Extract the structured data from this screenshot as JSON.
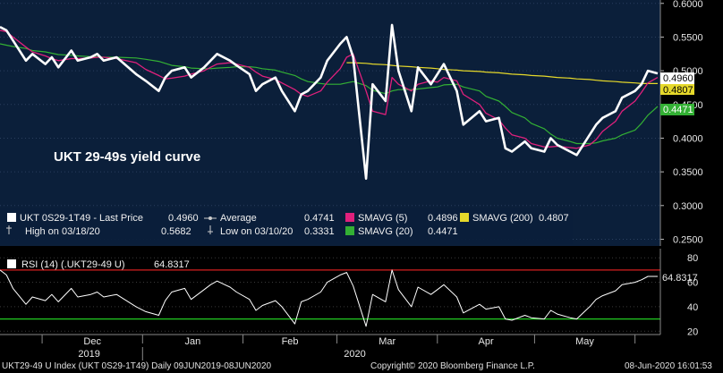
{
  "colors": {
    "background": "#000000",
    "panel": "#0b1f3a",
    "price": "#ffffff",
    "sma5": "#e0207c",
    "sma20": "#33b034",
    "sma200": "#e6d92a",
    "rsi_line": "#ffffff",
    "rsi_over": "#d62020",
    "rsi_under": "#22cc22"
  },
  "main": {
    "title": "UKT 29-49s yield curve",
    "y_ticks": [
      "0.6000",
      "0.5500",
      "0.5000",
      "0.4500",
      "0.4000",
      "0.3500",
      "0.3000",
      "0.2500"
    ],
    "last_labels": {
      "price": "0.4960",
      "sma200": "0.4807",
      "sma20": "0.4471"
    },
    "legend": {
      "price_label": "UKT 0S29-1T49 - Last Price",
      "price_value": "0.4960",
      "high_label": "High on 03/18/20",
      "high_value": "0.5682",
      "average_label": "Average",
      "average_value": "0.4741",
      "low_label": "Low on 03/10/20",
      "low_value": "0.3331",
      "sma5_label": "SMAVG (5)",
      "sma5_value": "0.4896",
      "sma20_label": "SMAVG (20)",
      "sma20_value": "0.4471",
      "sma200_label": "SMAVG (200)",
      "sma200_value": "0.4807"
    }
  },
  "rsi": {
    "legend_label": "RSI (14) (.UKT29-49 U)",
    "legend_value": "64.8317",
    "last_label": "64.8317",
    "y_ticks": [
      "80",
      "60",
      "40",
      "20"
    ],
    "overbought": 70,
    "oversold": 30
  },
  "x_axis": {
    "months": [
      "Dec",
      "Jan",
      "Feb",
      "Mar",
      "Apr",
      "May"
    ],
    "years": [
      "2019",
      "2020"
    ]
  },
  "footer": {
    "left": "UKT29-49 U Index (UKT 0S29-1T49)  Daily 09JUN2019-08JUN2020",
    "center": "Copyright© 2020 Bloomberg Finance L.P.",
    "right": "08-Jun-2020 16:01:53"
  },
  "chart_data": [
    {
      "type": "line",
      "title": "UKT 29-49s yield curve",
      "ylim": [
        0.24,
        0.605
      ],
      "x_dates": [
        "2019-11-18",
        "2019-11-20",
        "2019-11-22",
        "2019-11-26",
        "2019-11-28",
        "2019-12-02",
        "2019-12-04",
        "2019-12-06",
        "2019-12-10",
        "2019-12-12",
        "2019-12-16",
        "2019-12-18",
        "2019-12-20",
        "2019-12-24",
        "2019-12-30",
        "2020-01-02",
        "2020-01-06",
        "2020-01-08",
        "2020-01-10",
        "2020-01-14",
        "2020-01-16",
        "2020-01-20",
        "2020-01-22",
        "2020-01-24",
        "2020-01-28",
        "2020-01-30",
        "2020-02-03",
        "2020-02-05",
        "2020-02-07",
        "2020-02-11",
        "2020-02-13",
        "2020-02-17",
        "2020-02-19",
        "2020-02-21",
        "2020-02-25",
        "2020-02-27",
        "2020-03-02",
        "2020-03-04",
        "2020-03-06",
        "2020-03-10",
        "2020-03-12",
        "2020-03-16",
        "2020-03-18",
        "2020-03-20",
        "2020-03-24",
        "2020-03-26",
        "2020-03-30",
        "2020-04-01",
        "2020-04-03",
        "2020-04-07",
        "2020-04-09",
        "2020-04-14",
        "2020-04-16",
        "2020-04-20",
        "2020-04-22",
        "2020-04-24",
        "2020-04-28",
        "2020-04-30",
        "2020-05-04",
        "2020-05-06",
        "2020-05-08",
        "2020-05-12",
        "2020-05-14",
        "2020-05-18",
        "2020-05-20",
        "2020-05-22",
        "2020-05-26",
        "2020-05-28",
        "2020-06-01",
        "2020-06-03",
        "2020-06-05",
        "2020-06-08"
      ],
      "series": [
        {
          "name": "UKT 0S29-1T49 - Last Price",
          "values": [
            0.565,
            0.56,
            0.545,
            0.515,
            0.525,
            0.51,
            0.52,
            0.505,
            0.53,
            0.515,
            0.52,
            0.525,
            0.515,
            0.52,
            0.495,
            0.485,
            0.47,
            0.49,
            0.5,
            0.505,
            0.49,
            0.505,
            0.515,
            0.525,
            0.515,
            0.508,
            0.495,
            0.47,
            0.48,
            0.49,
            0.47,
            0.44,
            0.465,
            0.47,
            0.49,
            0.515,
            0.54,
            0.55,
            0.52,
            0.34,
            0.48,
            0.455,
            0.568,
            0.5,
            0.44,
            0.505,
            0.48,
            0.495,
            0.51,
            0.47,
            0.42,
            0.44,
            0.425,
            0.43,
            0.385,
            0.38,
            0.395,
            0.385,
            0.38,
            0.4,
            0.39,
            0.38,
            0.375,
            0.405,
            0.42,
            0.43,
            0.44,
            0.46,
            0.47,
            0.48,
            0.5,
            0.496
          ]
        },
        {
          "name": "SMAVG (5)",
          "values": [
            0.56,
            0.558,
            0.55,
            0.535,
            0.528,
            0.522,
            0.518,
            0.515,
            0.518,
            0.518,
            0.519,
            0.52,
            0.52,
            0.518,
            0.512,
            0.502,
            0.493,
            0.488,
            0.489,
            0.492,
            0.495,
            0.5,
            0.505,
            0.51,
            0.512,
            0.51,
            0.505,
            0.498,
            0.492,
            0.487,
            0.482,
            0.472,
            0.465,
            0.462,
            0.47,
            0.483,
            0.503,
            0.52,
            0.525,
            0.47,
            0.44,
            0.435,
            0.49,
            0.48,
            0.47,
            0.48,
            0.485,
            0.483,
            0.49,
            0.485,
            0.465,
            0.45,
            0.437,
            0.427,
            0.415,
            0.405,
            0.4,
            0.392,
            0.387,
            0.387,
            0.388,
            0.386,
            0.385,
            0.39,
            0.398,
            0.41,
            0.425,
            0.44,
            0.455,
            0.468,
            0.482,
            0.49
          ]
        },
        {
          "name": "SMAVG (20)",
          "values": [
            0.54,
            0.538,
            0.536,
            0.533,
            0.53,
            0.528,
            0.526,
            0.524,
            0.523,
            0.522,
            0.521,
            0.521,
            0.52,
            0.52,
            0.519,
            0.517,
            0.514,
            0.511,
            0.508,
            0.506,
            0.504,
            0.503,
            0.503,
            0.504,
            0.505,
            0.506,
            0.506,
            0.505,
            0.503,
            0.501,
            0.498,
            0.493,
            0.488,
            0.484,
            0.481,
            0.48,
            0.48,
            0.482,
            0.484,
            0.478,
            0.471,
            0.466,
            0.47,
            0.472,
            0.472,
            0.473,
            0.475,
            0.476,
            0.479,
            0.48,
            0.476,
            0.47,
            0.462,
            0.455,
            0.447,
            0.438,
            0.43,
            0.422,
            0.414,
            0.406,
            0.4,
            0.395,
            0.392,
            0.392,
            0.393,
            0.396,
            0.4,
            0.405,
            0.412,
            0.422,
            0.434,
            0.447
          ]
        },
        {
          "name": "SMAVG (200)",
          "values": [
            null,
            null,
            null,
            null,
            null,
            null,
            null,
            null,
            null,
            null,
            null,
            null,
            null,
            null,
            null,
            null,
            null,
            null,
            null,
            null,
            null,
            null,
            null,
            null,
            null,
            null,
            null,
            null,
            null,
            null,
            null,
            null,
            null,
            null,
            null,
            null,
            null,
            0.512,
            0.512,
            0.511,
            0.51,
            0.509,
            0.508,
            0.507,
            0.506,
            0.505,
            0.504,
            0.503,
            0.502,
            0.501,
            0.5,
            0.499,
            0.498,
            0.497,
            0.496,
            0.495,
            0.494,
            0.493,
            0.492,
            0.491,
            0.49,
            0.489,
            0.488,
            0.487,
            0.486,
            0.485,
            0.484,
            0.483,
            0.482,
            0.481,
            0.481,
            0.481
          ]
        }
      ]
    },
    {
      "type": "line",
      "title": "RSI (14) (.UKT29-49 U)",
      "ylim": [
        18,
        86
      ],
      "series": [
        {
          "name": "RSI (14) (.UKT29-49 U)",
          "values": [
            70,
            66,
            55,
            42,
            48,
            45,
            50,
            44,
            55,
            48,
            50,
            52,
            48,
            50,
            40,
            36,
            33,
            45,
            52,
            55,
            46,
            54,
            58,
            61,
            56,
            52,
            46,
            37,
            41,
            45,
            40,
            26,
            44,
            46,
            52,
            60,
            66,
            68,
            57,
            24,
            50,
            44,
            70,
            54,
            40,
            56,
            50,
            54,
            58,
            48,
            35,
            42,
            38,
            40,
            30,
            29,
            33,
            31,
            30,
            37,
            34,
            31,
            30,
            40,
            46,
            49,
            53,
            58,
            60,
            62,
            64.8,
            64.83
          ]
        }
      ]
    }
  ]
}
